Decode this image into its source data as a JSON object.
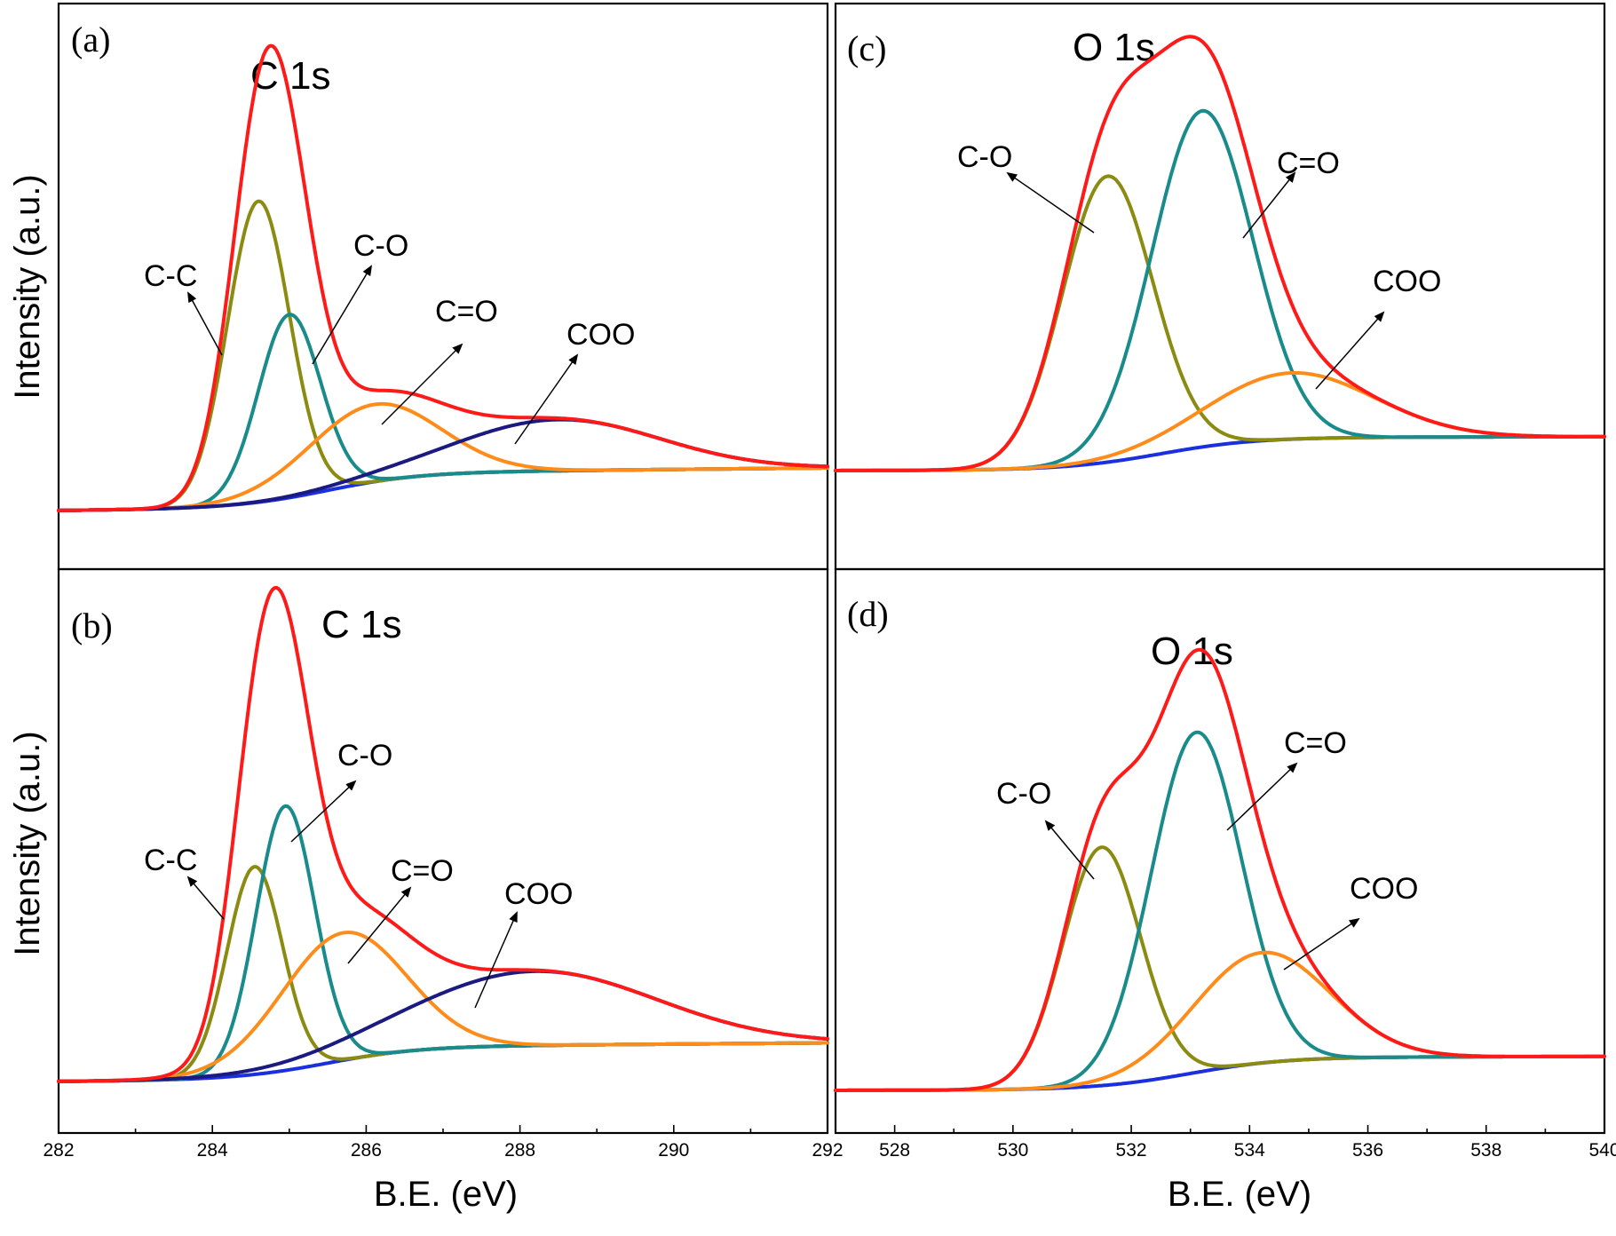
{
  "chart_data": [
    {
      "id": "a",
      "type": "line",
      "panel_label": "(a)",
      "title": "C 1s",
      "xlabel": "",
      "ylabel": "Intensity (a.u.)",
      "xlim": [
        282,
        292
      ],
      "ylim": [
        0,
        100
      ],
      "x_ticks": [],
      "annotations": [
        "C-C",
        "C-O",
        "C=O",
        "COO"
      ],
      "series": [
        {
          "name": "Envelope",
          "color": "#ff1a1a",
          "components": [
            "C-C",
            "C-O",
            "C=O",
            "COO"
          ]
        },
        {
          "name": "C-C",
          "color": "#8b8b12",
          "center": 284.6,
          "height": 60.0,
          "fwhm": 0.95
        },
        {
          "name": "C-O",
          "color": "#1a8b8b",
          "center": 285.0,
          "height": 36.5,
          "fwhm": 0.95
        },
        {
          "name": "C=O",
          "color": "#ff8c1a",
          "center": 286.1,
          "height": 15.4,
          "fwhm": 2.0
        },
        {
          "name": "COO",
          "color": "#1a1a80",
          "center": 288.5,
          "height": 10.2,
          "fwhm": 3.1
        },
        {
          "name": "Background",
          "color": "#1a2fe0",
          "shift_center": 285.5,
          "shift_width": 0.6,
          "step": 7.0,
          "slope": 0.15
        }
      ]
    },
    {
      "id": "b",
      "type": "line",
      "panel_label": "(b)",
      "title": "C 1s",
      "xlabel": "B.E. (eV)",
      "ylabel": "Intensity (a.u.)",
      "xlim": [
        282,
        292
      ],
      "ylim": [
        0,
        100
      ],
      "x_ticks": [
        "282",
        "284",
        "286",
        "288",
        "290",
        "292"
      ],
      "annotations": [
        "C-C",
        "C-O",
        "C=O",
        "COO"
      ],
      "series": [
        {
          "name": "Envelope",
          "color": "#ff1a1a",
          "components": [
            "C-C",
            "C-O",
            "C=O",
            "COO"
          ]
        },
        {
          "name": "C-C",
          "color": "#8b8b12",
          "center": 284.55,
          "height": 41.4,
          "fwhm": 0.85
        },
        {
          "name": "C-O",
          "color": "#1a8b8b",
          "center": 284.95,
          "height": 52.7,
          "fwhm": 0.9
        },
        {
          "name": "C=O",
          "color": "#ff8c1a",
          "center": 285.7,
          "height": 25.4,
          "fwhm": 1.9
        },
        {
          "name": "COO",
          "color": "#1a1a80",
          "center": 288.2,
          "height": 14.8,
          "fwhm": 3.7
        },
        {
          "name": "Background",
          "color": "#1a2fe0",
          "shift_center": 285.5,
          "shift_width": 0.6,
          "step": 6.5,
          "slope": 0.12
        }
      ]
    },
    {
      "id": "c",
      "type": "line",
      "panel_label": "(c)",
      "title": "O 1s",
      "xlabel": "",
      "ylabel": "",
      "xlim": [
        527,
        540
      ],
      "ylim": [
        0,
        100
      ],
      "x_ticks": [],
      "annotations": [
        "C-O",
        "C=O",
        "COO"
      ],
      "series": [
        {
          "name": "Envelope",
          "color": "#ff1a1a",
          "components": [
            "C-O",
            "C=O",
            "COO"
          ]
        },
        {
          "name": "C-O",
          "color": "#8b8b12",
          "center": 531.6,
          "height": 57.0,
          "fwhm": 1.8
        },
        {
          "name": "C=O",
          "color": "#1a8b8b",
          "center": 533.2,
          "height": 67.0,
          "fwhm": 2.0
        },
        {
          "name": "COO",
          "color": "#ff8c1a",
          "center": 534.7,
          "height": 13.2,
          "fwhm": 3.3
        },
        {
          "name": "Background",
          "color": "#1a2fe0",
          "shift_center": 532.5,
          "shift_width": 0.8,
          "step": 6.5,
          "slope": 0.02
        }
      ]
    },
    {
      "id": "d",
      "type": "line",
      "panel_label": "(d)",
      "title": "O 1s",
      "xlabel": "B.E. (eV)",
      "ylabel": "",
      "xlim": [
        527,
        540
      ],
      "ylim": [
        0,
        100
      ],
      "x_ticks": [
        "528",
        "530",
        "532",
        "534",
        "536",
        "538",
        "540"
      ],
      "annotations": [
        "C-O",
        "C=O",
        "COO"
      ],
      "series": [
        {
          "name": "Envelope",
          "color": "#ff1a1a",
          "components": [
            "C-O",
            "C=O",
            "COO"
          ]
        },
        {
          "name": "C-O",
          "color": "#8b8b12",
          "center": 531.5,
          "height": 47.5,
          "fwhm": 1.55
        },
        {
          "name": "C=O",
          "color": "#1a8b8b",
          "center": 533.1,
          "height": 67.8,
          "fwhm": 1.8
        },
        {
          "name": "COO",
          "color": "#ff8c1a",
          "center": 534.2,
          "height": 22.0,
          "fwhm": 2.7
        },
        {
          "name": "Background",
          "color": "#1a2fe0",
          "shift_center": 533.0,
          "shift_width": 0.8,
          "step": 6.5,
          "slope": 0.02
        }
      ]
    }
  ]
}
